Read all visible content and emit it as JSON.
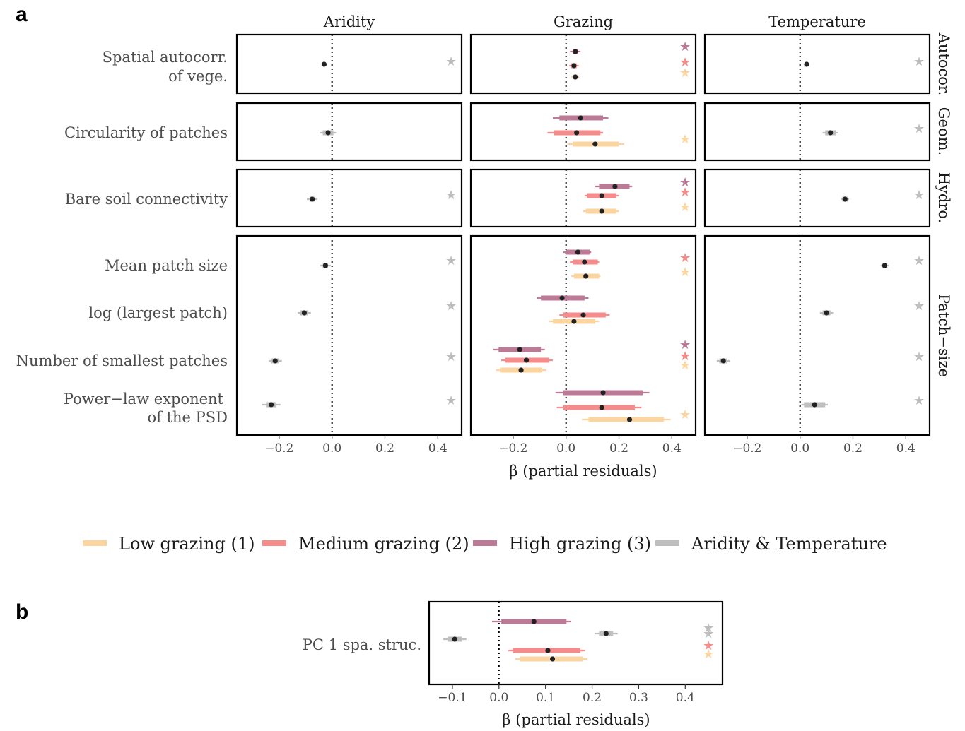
{
  "panels": {
    "a": "a",
    "b": "b"
  },
  "chart_data": [
    {
      "type": "scatter",
      "panel": "a",
      "columns": [
        "Aridity",
        "Grazing",
        "Temperature"
      ],
      "row_groups": [
        "Autocor.",
        "Geom.",
        "Hydro.",
        "Patch−size"
      ],
      "row_labels": {
        "autocor": [
          "Spatial autocorr.",
          "of vege."
        ],
        "circ": [
          "Circularity of patches"
        ],
        "bare": [
          "Bare soil connectivity"
        ],
        "mean": [
          "Mean patch size"
        ],
        "largest": [
          "log (largest patch)"
        ],
        "smallest": [
          "Number of smallest patches"
        ],
        "plexp": [
          "Power−law exponent",
          "of the PSD"
        ]
      },
      "xlabel": "β (partial residuals)",
      "xlim": [
        -0.36,
        0.49
      ],
      "xticks": [
        -0.2,
        0.0,
        0.2,
        0.4
      ],
      "xtick_labels": [
        "−0.2",
        "0.0",
        "0.2",
        "0.4"
      ],
      "reference_line_x": 0,
      "series_estimates": [
        {
          "column": "Aridity",
          "row": "autocor",
          "series": "agg",
          "value": -0.03,
          "ci66": [
            -0.03,
            -0.03
          ],
          "ci95": [
            -0.03,
            -0.03
          ],
          "significant": true
        },
        {
          "column": "Aridity",
          "row": "circ",
          "series": "agg",
          "value": -0.015,
          "ci66": [
            -0.035,
            0.005
          ],
          "ci95": [
            -0.045,
            0.015
          ],
          "significant": false
        },
        {
          "column": "Aridity",
          "row": "bare",
          "series": "agg",
          "value": -0.075,
          "ci66": [
            -0.085,
            -0.065
          ],
          "ci95": [
            -0.095,
            -0.055
          ],
          "significant": true
        },
        {
          "column": "Aridity",
          "row": "mean",
          "series": "agg",
          "value": -0.025,
          "ci66": [
            -0.035,
            -0.015
          ],
          "ci95": [
            -0.045,
            -0.005
          ],
          "significant": true
        },
        {
          "column": "Aridity",
          "row": "largest",
          "series": "agg",
          "value": -0.105,
          "ci66": [
            -0.12,
            -0.09
          ],
          "ci95": [
            -0.13,
            -0.08
          ],
          "significant": true
        },
        {
          "column": "Aridity",
          "row": "smallest",
          "series": "agg",
          "value": -0.215,
          "ci66": [
            -0.23,
            -0.2
          ],
          "ci95": [
            -0.24,
            -0.19
          ],
          "significant": true
        },
        {
          "column": "Aridity",
          "row": "plexp",
          "series": "agg",
          "value": -0.23,
          "ci66": [
            -0.25,
            -0.21
          ],
          "ci95": [
            -0.265,
            -0.195
          ],
          "significant": true
        },
        {
          "column": "Grazing",
          "row": "autocor",
          "series": "high",
          "value": 0.035,
          "ci66": [
            0.025,
            0.045
          ],
          "ci95": [
            0.015,
            0.055
          ],
          "significant": true
        },
        {
          "column": "Grazing",
          "row": "autocor",
          "series": "medium",
          "value": 0.03,
          "ci66": [
            0.02,
            0.04
          ],
          "ci95": [
            0.012,
            0.048
          ],
          "significant": true
        },
        {
          "column": "Grazing",
          "row": "autocor",
          "series": "low",
          "value": 0.035,
          "ci66": [
            0.027,
            0.043
          ],
          "ci95": [
            0.02,
            0.05
          ],
          "significant": true
        },
        {
          "column": "Grazing",
          "row": "circ",
          "series": "high",
          "value": 0.055,
          "ci66": [
            -0.025,
            0.14
          ],
          "ci95": [
            -0.05,
            0.16
          ],
          "significant": false
        },
        {
          "column": "Grazing",
          "row": "circ",
          "series": "medium",
          "value": 0.04,
          "ci66": [
            -0.045,
            0.13
          ],
          "ci95": [
            -0.07,
            0.14
          ],
          "significant": false
        },
        {
          "column": "Grazing",
          "row": "circ",
          "series": "low",
          "value": 0.11,
          "ci66": [
            0.025,
            0.2
          ],
          "ci95": [
            0.005,
            0.22
          ],
          "significant": true
        },
        {
          "column": "Grazing",
          "row": "bare",
          "series": "high",
          "value": 0.185,
          "ci66": [
            0.125,
            0.24
          ],
          "ci95": [
            0.11,
            0.25
          ],
          "significant": true
        },
        {
          "column": "Grazing",
          "row": "bare",
          "series": "medium",
          "value": 0.135,
          "ci66": [
            0.08,
            0.19
          ],
          "ci95": [
            0.07,
            0.2
          ],
          "significant": true
        },
        {
          "column": "Grazing",
          "row": "bare",
          "series": "low",
          "value": 0.135,
          "ci66": [
            0.075,
            0.19
          ],
          "ci95": [
            0.065,
            0.2
          ],
          "significant": true
        },
        {
          "column": "Grazing",
          "row": "mean",
          "series": "high",
          "value": 0.045,
          "ci66": [
            0.0,
            0.09
          ],
          "ci95": [
            -0.01,
            0.095
          ],
          "significant": false
        },
        {
          "column": "Grazing",
          "row": "mean",
          "series": "medium",
          "value": 0.07,
          "ci66": [
            0.025,
            0.12
          ],
          "ci95": [
            0.015,
            0.125
          ],
          "significant": true
        },
        {
          "column": "Grazing",
          "row": "mean",
          "series": "low",
          "value": 0.075,
          "ci66": [
            0.03,
            0.125
          ],
          "ci95": [
            0.02,
            0.13
          ],
          "significant": true
        },
        {
          "column": "Grazing",
          "row": "largest",
          "series": "high",
          "value": -0.015,
          "ci66": [
            -0.095,
            0.07
          ],
          "ci95": [
            -0.11,
            0.085
          ],
          "significant": false
        },
        {
          "column": "Grazing",
          "row": "largest",
          "series": "medium",
          "value": 0.065,
          "ci66": [
            -0.01,
            0.15
          ],
          "ci95": [
            -0.025,
            0.165
          ],
          "significant": false
        },
        {
          "column": "Grazing",
          "row": "largest",
          "series": "low",
          "value": 0.03,
          "ci66": [
            -0.05,
            0.11
          ],
          "ci95": [
            -0.065,
            0.125
          ],
          "significant": false
        },
        {
          "column": "Grazing",
          "row": "smallest",
          "series": "high",
          "value": -0.175,
          "ci66": [
            -0.255,
            -0.095
          ],
          "ci95": [
            -0.275,
            -0.08
          ],
          "significant": true
        },
        {
          "column": "Grazing",
          "row": "smallest",
          "series": "medium",
          "value": -0.15,
          "ci66": [
            -0.23,
            -0.065
          ],
          "ci95": [
            -0.245,
            -0.05
          ],
          "significant": true
        },
        {
          "column": "Grazing",
          "row": "smallest",
          "series": "low",
          "value": -0.17,
          "ci66": [
            -0.25,
            -0.09
          ],
          "ci95": [
            -0.265,
            -0.075
          ],
          "significant": true
        },
        {
          "column": "Grazing",
          "row": "plexp",
          "series": "high",
          "value": 0.14,
          "ci66": [
            -0.01,
            0.29
          ],
          "ci95": [
            -0.04,
            0.315
          ],
          "significant": false
        },
        {
          "column": "Grazing",
          "row": "plexp",
          "series": "medium",
          "value": 0.135,
          "ci66": [
            -0.01,
            0.26
          ],
          "ci95": [
            -0.035,
            0.285
          ],
          "significant": false
        },
        {
          "column": "Grazing",
          "row": "plexp",
          "series": "low",
          "value": 0.24,
          "ci66": [
            0.085,
            0.37
          ],
          "ci95": [
            0.06,
            0.395
          ],
          "significant": true
        },
        {
          "column": "Temperature",
          "row": "autocor",
          "series": "agg",
          "value": 0.025,
          "ci66": [
            0.025,
            0.025
          ],
          "ci95": [
            0.025,
            0.025
          ],
          "significant": true
        },
        {
          "column": "Temperature",
          "row": "circ",
          "series": "agg",
          "value": 0.115,
          "ci66": [
            0.095,
            0.135
          ],
          "ci95": [
            0.085,
            0.145
          ],
          "significant": true
        },
        {
          "column": "Temperature",
          "row": "bare",
          "series": "agg",
          "value": 0.17,
          "ci66": [
            0.16,
            0.18
          ],
          "ci95": [
            0.155,
            0.185
          ],
          "significant": true
        },
        {
          "column": "Temperature",
          "row": "mean",
          "series": "agg",
          "value": 0.32,
          "ci66": [
            0.31,
            0.33
          ],
          "ci95": [
            0.305,
            0.335
          ],
          "significant": true
        },
        {
          "column": "Temperature",
          "row": "largest",
          "series": "agg",
          "value": 0.1,
          "ci66": [
            0.085,
            0.115
          ],
          "ci95": [
            0.075,
            0.125
          ],
          "significant": true
        },
        {
          "column": "Temperature",
          "row": "smallest",
          "series": "agg",
          "value": -0.29,
          "ci66": [
            -0.305,
            -0.275
          ],
          "ci95": [
            -0.315,
            -0.265
          ],
          "significant": true
        },
        {
          "column": "Temperature",
          "row": "plexp",
          "series": "agg",
          "value": 0.055,
          "ci66": [
            0.015,
            0.095
          ],
          "ci95": [
            0.005,
            0.105
          ],
          "significant": true
        }
      ]
    },
    {
      "type": "scatter",
      "panel": "b",
      "row_label": "PC 1 spa. struc.",
      "xlabel": "β (partial residuals)",
      "xlim": [
        -0.15,
        0.48
      ],
      "xticks": [
        -0.1,
        0.0,
        0.1,
        0.2,
        0.3,
        0.4
      ],
      "xtick_labels": [
        "−0.1",
        "0.0",
        "0.1",
        "0.2",
        "0.3",
        "0.4"
      ],
      "reference_line_x": 0,
      "series_estimates": [
        {
          "series": "high",
          "value": 0.075,
          "ci66": [
            0.005,
            0.145
          ],
          "ci95": [
            -0.015,
            0.155
          ],
          "significant": false
        },
        {
          "series": "aridity",
          "value": -0.095,
          "ci66": [
            -0.11,
            -0.08
          ],
          "ci95": [
            -0.12,
            -0.07
          ],
          "significant": true
        },
        {
          "series": "temperature",
          "value": 0.23,
          "ci66": [
            0.215,
            0.245
          ],
          "ci95": [
            0.205,
            0.255
          ],
          "significant": true
        },
        {
          "series": "medium",
          "value": 0.105,
          "ci66": [
            0.03,
            0.175
          ],
          "ci95": [
            0.02,
            0.185
          ],
          "significant": true
        },
        {
          "series": "low",
          "value": 0.115,
          "ci66": [
            0.045,
            0.18
          ],
          "ci95": [
            0.035,
            0.19
          ],
          "significant": true
        }
      ]
    }
  ],
  "legend": {
    "position": "bottom",
    "items": [
      {
        "key": "low",
        "label": "Low grazing (1)",
        "color": "#fbd5a0"
      },
      {
        "key": "medium",
        "label": "Medium grazing (2)",
        "color": "#f58c8b"
      },
      {
        "key": "high",
        "label": "High grazing (3)",
        "color": "#bd7a96"
      },
      {
        "key": "agg",
        "label": "Aridity & Temperature",
        "color": "#bebebe"
      }
    ]
  },
  "colors": {
    "low": "#fbd5a0",
    "medium": "#f58c8b",
    "high": "#bd7a96",
    "agg": "#bebebe",
    "point": "#222222",
    "frame": "#000000"
  }
}
